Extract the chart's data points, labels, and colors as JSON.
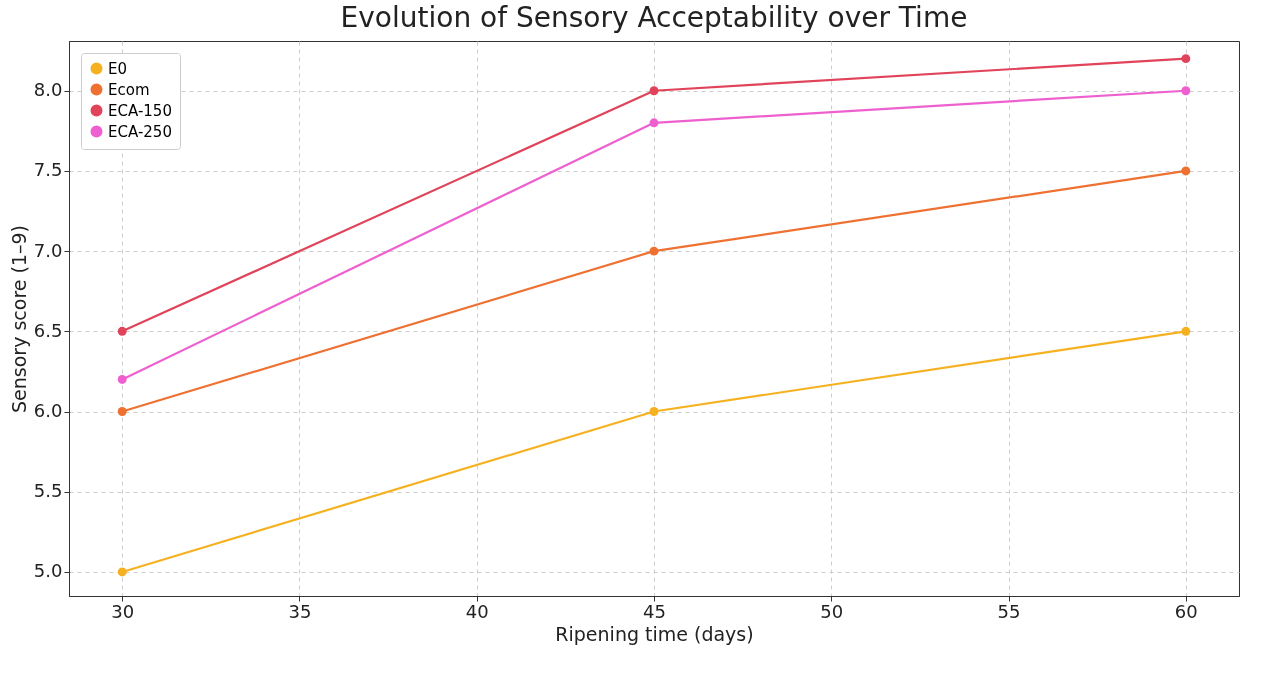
{
  "chart_data": {
    "type": "line",
    "title": "Evolution of Sensory Acceptability over Time",
    "xlabel": "Ripening time (days)",
    "ylabel": "Sensory score (1–9)",
    "x": [
      30,
      45,
      60
    ],
    "series": [
      {
        "name": "E0",
        "color": "#f5b120",
        "values": [
          5.0,
          6.0,
          6.5
        ]
      },
      {
        "name": "Ecom",
        "color": "#ee7132",
        "values": [
          6.0,
          7.0,
          7.5
        ]
      },
      {
        "name": "ECA-150",
        "color": "#e0435a",
        "values": [
          6.5,
          8.0,
          8.2
        ]
      },
      {
        "name": "ECA-250",
        "color": "#ee5fd0",
        "values": [
          6.2,
          7.8,
          8.0
        ]
      }
    ],
    "xlim": [
      28.5,
      61.5
    ],
    "ylim": [
      4.85,
      8.31
    ],
    "xticks": [
      30,
      35,
      40,
      45,
      50,
      55,
      60
    ],
    "yticks": [
      {
        "value": 5,
        "label": "5.0"
      },
      {
        "value": 5.5,
        "label": "5.5"
      },
      {
        "value": 6,
        "label": "6.0"
      },
      {
        "value": 6.5,
        "label": "6.5"
      },
      {
        "value": 7,
        "label": "7.0"
      },
      {
        "value": 7.5,
        "label": "7.5"
      },
      {
        "value": 8,
        "label": "8.0"
      }
    ],
    "grid": true,
    "legend": "top left",
    "marker": "circle",
    "line_style": "solid"
  }
}
